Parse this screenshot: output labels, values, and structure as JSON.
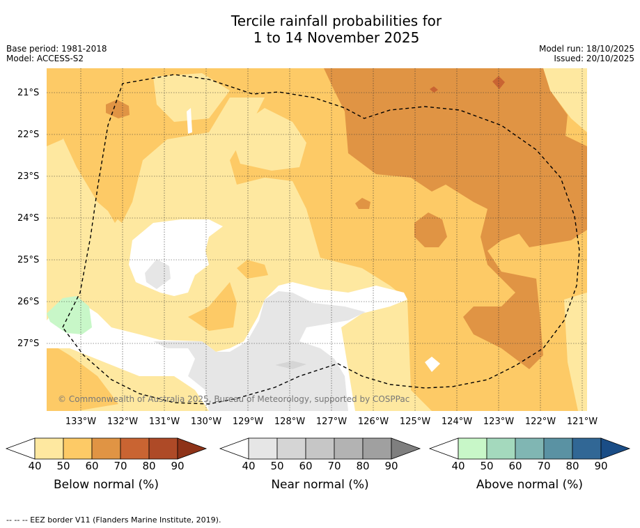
{
  "title": {
    "line1": "Tercile rainfall probabilities for",
    "line2": "1 to 14 November 2025"
  },
  "info_left": {
    "base_period": "Base period: 1981-2018",
    "model": "Model: ACCESS-S2"
  },
  "info_right": {
    "model_run": "Model run: 18/10/2025",
    "issued": "Issued: 20/10/2025"
  },
  "map": {
    "latitude_labels": [
      "21°S",
      "22°S",
      "23°S",
      "24°S",
      "25°S",
      "26°S",
      "27°S"
    ],
    "longitude_labels": [
      "133°W",
      "132°W",
      "131°W",
      "130°W",
      "129°W",
      "128°W",
      "127°W",
      "126°W",
      "125°W",
      "124°W",
      "123°W",
      "122°W",
      "121°W"
    ],
    "copyright": "© Commonwealth of Australia 2025, Bureau of Meteorology, supported by COSPPac"
  },
  "legends": [
    {
      "title": "Below normal (%)",
      "ticks": [
        "40",
        "50",
        "60",
        "70",
        "80",
        "90"
      ],
      "colors": [
        "#ffffff",
        "#fee8a0",
        "#fdca66",
        "#e09444",
        "#c96432",
        "#ae4a27",
        "#8e3318"
      ]
    },
    {
      "title": "Near normal (%)",
      "ticks": [
        "40",
        "50",
        "60",
        "70",
        "80",
        "90"
      ],
      "colors": [
        "#ffffff",
        "#e6e6e6",
        "#d5d5d5",
        "#c6c6c6",
        "#b3b3b3",
        "#a0a0a0",
        "#7f7f7f"
      ]
    },
    {
      "title": "Above normal (%)",
      "ticks": [
        "40",
        "50",
        "60",
        "70",
        "80",
        "90"
      ],
      "colors": [
        "#ffffff",
        "#c8f7c8",
        "#a4d9bd",
        "#80b6b3",
        "#5a92a3",
        "#316795",
        "#1a4d86"
      ]
    }
  ],
  "footnote": "--  --  -- EEZ border V11 (Flanders Marine Institute, 2019)."
}
